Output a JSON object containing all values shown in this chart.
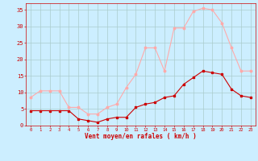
{
  "hours": [
    0,
    1,
    2,
    3,
    4,
    5,
    6,
    7,
    8,
    9,
    10,
    11,
    12,
    13,
    14,
    15,
    16,
    17,
    18,
    19,
    20,
    21,
    22,
    23
  ],
  "wind_avg": [
    4.5,
    4.5,
    4.5,
    4.5,
    4.5,
    2.0,
    1.5,
    1.0,
    2.0,
    2.5,
    2.5,
    5.5,
    6.5,
    7.0,
    8.5,
    9.0,
    12.5,
    14.5,
    16.5,
    16.0,
    15.5,
    11.0,
    9.0,
    8.5
  ],
  "wind_gust": [
    8.5,
    10.5,
    10.5,
    10.5,
    5.5,
    5.5,
    3.5,
    3.5,
    5.5,
    6.5,
    11.5,
    15.5,
    23.5,
    23.5,
    16.5,
    29.5,
    29.5,
    34.5,
    35.5,
    35.0,
    31.0,
    23.5,
    16.5,
    16.5
  ],
  "avg_color": "#cc0000",
  "gust_color": "#ffaaaa",
  "bg_color": "#cceeff",
  "grid_color": "#aacccc",
  "xlabel": "Vent moyen/en rafales ( km/h )",
  "xlabel_color": "#cc0000",
  "tick_color": "#cc0000",
  "ylim": [
    0,
    37
  ],
  "yticks": [
    0,
    5,
    10,
    15,
    20,
    25,
    30,
    35
  ],
  "xlim": [
    -0.5,
    23.5
  ]
}
